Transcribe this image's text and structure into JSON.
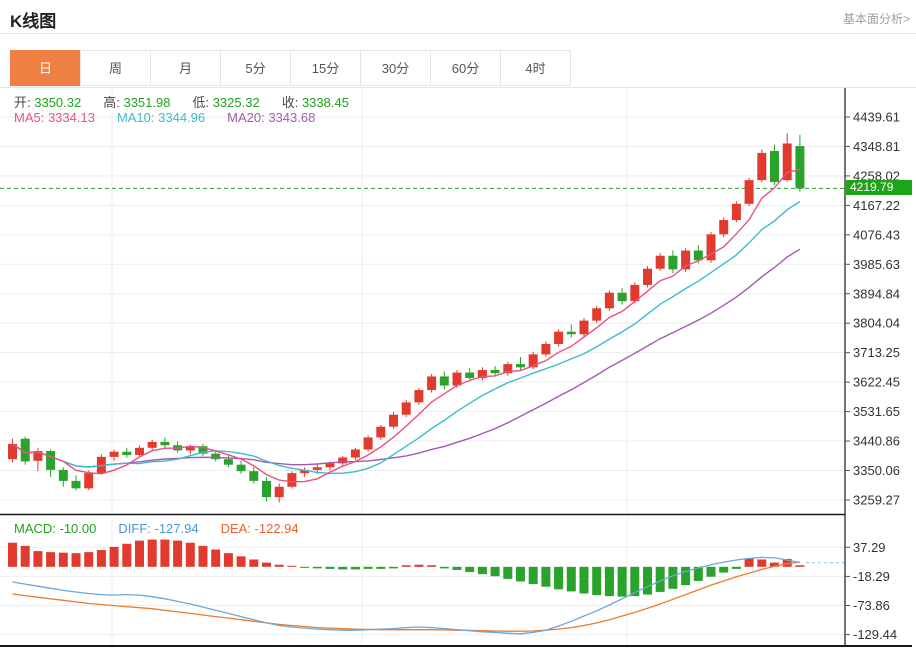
{
  "header": {
    "title": "K线图",
    "analysis_link": "基本面分析>"
  },
  "tabs": {
    "items": [
      {
        "label": "日",
        "selected": true
      },
      {
        "label": "周",
        "selected": false
      },
      {
        "label": "月",
        "selected": false
      },
      {
        "label": "5分",
        "selected": false
      },
      {
        "label": "15分",
        "selected": false
      },
      {
        "label": "30分",
        "selected": false
      },
      {
        "label": "60分",
        "selected": false
      },
      {
        "label": "4时",
        "selected": false
      }
    ]
  },
  "info_bar": {
    "ohlc": [
      {
        "label": "开:",
        "value": "3350.32"
      },
      {
        "label": "高:",
        "value": "3351.98"
      },
      {
        "label": "低:",
        "value": "3325.32"
      },
      {
        "label": "收:",
        "value": "3338.45"
      }
    ],
    "ma": [
      {
        "label": "MA5:",
        "value": "3334.13",
        "color": "#e8547e"
      },
      {
        "label": "MA10:",
        "value": "3344.96",
        "color": "#3bbccd"
      },
      {
        "label": "MA20:",
        "value": "3343.68",
        "color": "#a35ab0"
      }
    ]
  },
  "macd_bar": {
    "items": [
      {
        "label": "MACD:",
        "value": "-10.00",
        "color": "#21a21c"
      },
      {
        "label": "DIFF:",
        "value": "-127.94",
        "color": "#4f94d8"
      },
      {
        "label": "DEA:",
        "value": "-122.94",
        "color": "#e8622d"
      }
    ]
  },
  "chart_data": {
    "type": "candlestick",
    "title": "K线图 daily candlestick with MA5/MA10/MA20 and MACD",
    "current_price": 4219.79,
    "current_price_label": "4219.79",
    "y_axis_main": [
      4439.61,
      4348.81,
      4258.02,
      4167.22,
      4076.43,
      3985.63,
      3894.84,
      3804.04,
      3713.25,
      3622.45,
      3531.65,
      3440.86,
      3350.06,
      3259.27
    ],
    "y_axis_macd": [
      37.29,
      -18.29,
      -73.86,
      -129.44
    ],
    "ylim_main": [
      3216,
      4529
    ],
    "ylim_macd": [
      -151.2,
      93.2
    ],
    "grid": true,
    "legend_position": "top-left",
    "ma_periods": [
      5,
      10,
      20
    ],
    "candles": [
      [
        3385,
        3448,
        3375,
        3432
      ],
      [
        3448,
        3455,
        3368,
        3378
      ],
      [
        3380,
        3420,
        3348,
        3410
      ],
      [
        3410,
        3415,
        3330,
        3352
      ],
      [
        3352,
        3360,
        3300,
        3318
      ],
      [
        3318,
        3335,
        3288,
        3295
      ],
      [
        3295,
        3350,
        3290,
        3342
      ],
      [
        3342,
        3400,
        3338,
        3392
      ],
      [
        3392,
        3415,
        3380,
        3408
      ],
      [
        3408,
        3420,
        3390,
        3398
      ],
      [
        3398,
        3428,
        3392,
        3420
      ],
      [
        3420,
        3445,
        3410,
        3438
      ],
      [
        3438,
        3452,
        3420,
        3428
      ],
      [
        3428,
        3440,
        3405,
        3412
      ],
      [
        3412,
        3430,
        3400,
        3425
      ],
      [
        3425,
        3432,
        3395,
        3402
      ],
      [
        3402,
        3412,
        3378,
        3385
      ],
      [
        3385,
        3398,
        3360,
        3368
      ],
      [
        3368,
        3380,
        3340,
        3348
      ],
      [
        3348,
        3360,
        3310,
        3318
      ],
      [
        3318,
        3330,
        3255,
        3268
      ],
      [
        3268,
        3310,
        3252,
        3300
      ],
      [
        3300,
        3348,
        3295,
        3342
      ],
      [
        3342,
        3360,
        3330,
        3352
      ],
      [
        3352,
        3368,
        3340,
        3360
      ],
      [
        3360,
        3378,
        3350,
        3372
      ],
      [
        3372,
        3395,
        3365,
        3390
      ],
      [
        3390,
        3420,
        3382,
        3415
      ],
      [
        3415,
        3458,
        3408,
        3452
      ],
      [
        3452,
        3490,
        3445,
        3485
      ],
      [
        3485,
        3530,
        3478,
        3522
      ],
      [
        3522,
        3568,
        3515,
        3560
      ],
      [
        3560,
        3605,
        3552,
        3598
      ],
      [
        3598,
        3648,
        3590,
        3640
      ],
      [
        3640,
        3655,
        3600,
        3612
      ],
      [
        3612,
        3660,
        3605,
        3652
      ],
      [
        3652,
        3665,
        3625,
        3635
      ],
      [
        3635,
        3668,
        3628,
        3660
      ],
      [
        3660,
        3672,
        3640,
        3650
      ],
      [
        3650,
        3685,
        3642,
        3678
      ],
      [
        3678,
        3700,
        3660,
        3668
      ],
      [
        3668,
        3715,
        3662,
        3708
      ],
      [
        3708,
        3748,
        3700,
        3740
      ],
      [
        3740,
        3785,
        3732,
        3778
      ],
      [
        3778,
        3800,
        3760,
        3770
      ],
      [
        3770,
        3820,
        3762,
        3812
      ],
      [
        3812,
        3858,
        3805,
        3850
      ],
      [
        3850,
        3905,
        3842,
        3898
      ],
      [
        3898,
        3912,
        3862,
        3872
      ],
      [
        3872,
        3930,
        3865,
        3922
      ],
      [
        3922,
        3980,
        3915,
        3972
      ],
      [
        3972,
        4020,
        3965,
        4012
      ],
      [
        4012,
        4028,
        3958,
        3970
      ],
      [
        3970,
        4035,
        3962,
        4028
      ],
      [
        4028,
        4045,
        3988,
        3998
      ],
      [
        3998,
        4085,
        3990,
        4078
      ],
      [
        4078,
        4130,
        4070,
        4122
      ],
      [
        4122,
        4180,
        4115,
        4172
      ],
      [
        4172,
        4252,
        4165,
        4245
      ],
      [
        4245,
        4340,
        4238,
        4329
      ],
      [
        4335,
        4355,
        4230,
        4239
      ],
      [
        4245,
        4390,
        4240,
        4358
      ],
      [
        4350,
        4385,
        4210,
        4219.79
      ]
    ],
    "macd": {
      "hist": [
        46,
        40,
        30,
        28,
        27,
        26,
        28,
        32,
        38,
        44,
        50,
        52,
        52,
        50,
        46,
        40,
        33,
        26,
        20,
        14,
        8,
        4,
        2,
        -2,
        -3,
        -4,
        -5,
        -5,
        -4,
        -4,
        -3,
        3,
        4,
        3,
        -3,
        -6,
        -10,
        -14,
        -18,
        -23,
        -28,
        -33,
        -38,
        -43,
        -47,
        -51,
        -54,
        -56,
        -57,
        -56,
        -53,
        -48,
        -42,
        -35,
        -27,
        -19,
        -11,
        -4,
        16,
        14,
        8,
        15,
        3
      ],
      "diff": [
        -29,
        -33,
        -37,
        -41,
        -45,
        -48,
        -51,
        -53,
        -54,
        -53,
        -54,
        -57,
        -61,
        -66,
        -71,
        -77,
        -83,
        -89,
        -95,
        -101,
        -107,
        -112,
        -115,
        -117,
        -119,
        -120,
        -121,
        -121,
        -120,
        -119,
        -118,
        -116,
        -115,
        -116,
        -118,
        -120,
        -122,
        -124,
        -125,
        -127,
        -127.94,
        -125,
        -121,
        -113,
        -104,
        -94,
        -84,
        -73,
        -61,
        -49,
        -38,
        -27,
        -17,
        -9,
        -2,
        4,
        9,
        13,
        16,
        18,
        17,
        13,
        8
      ],
      "dea": [
        -52,
        -55,
        -58,
        -61,
        -64,
        -67,
        -70,
        -72,
        -74,
        -76,
        -78,
        -80,
        -83,
        -86,
        -89,
        -92,
        -95,
        -98,
        -101,
        -104,
        -107,
        -110,
        -112,
        -114,
        -116,
        -117,
        -118,
        -119,
        -119.5,
        -120,
        -120,
        -120,
        -120,
        -120,
        -120.5,
        -121,
        -121.5,
        -122,
        -122.5,
        -122.94,
        -122.9,
        -122.5,
        -121,
        -119,
        -116,
        -112,
        -107,
        -101,
        -94,
        -87,
        -79,
        -71,
        -62,
        -53,
        -44,
        -35,
        -27,
        -19,
        -12,
        -5,
        1,
        6,
        9
      ]
    },
    "colors": {
      "up": "#e13b30",
      "down": "#2aa32d",
      "ma5": "#e8547e",
      "ma10": "#3bbccd",
      "ma20": "#a35ab0",
      "diff": "#6aa7dc",
      "dea": "#ea7c30",
      "price_line": "#21a21c",
      "price_tag_bg": "#1fa319",
      "grid": "#ededed",
      "axis_text": "#333333",
      "frame": "#1a1a1a"
    }
  }
}
